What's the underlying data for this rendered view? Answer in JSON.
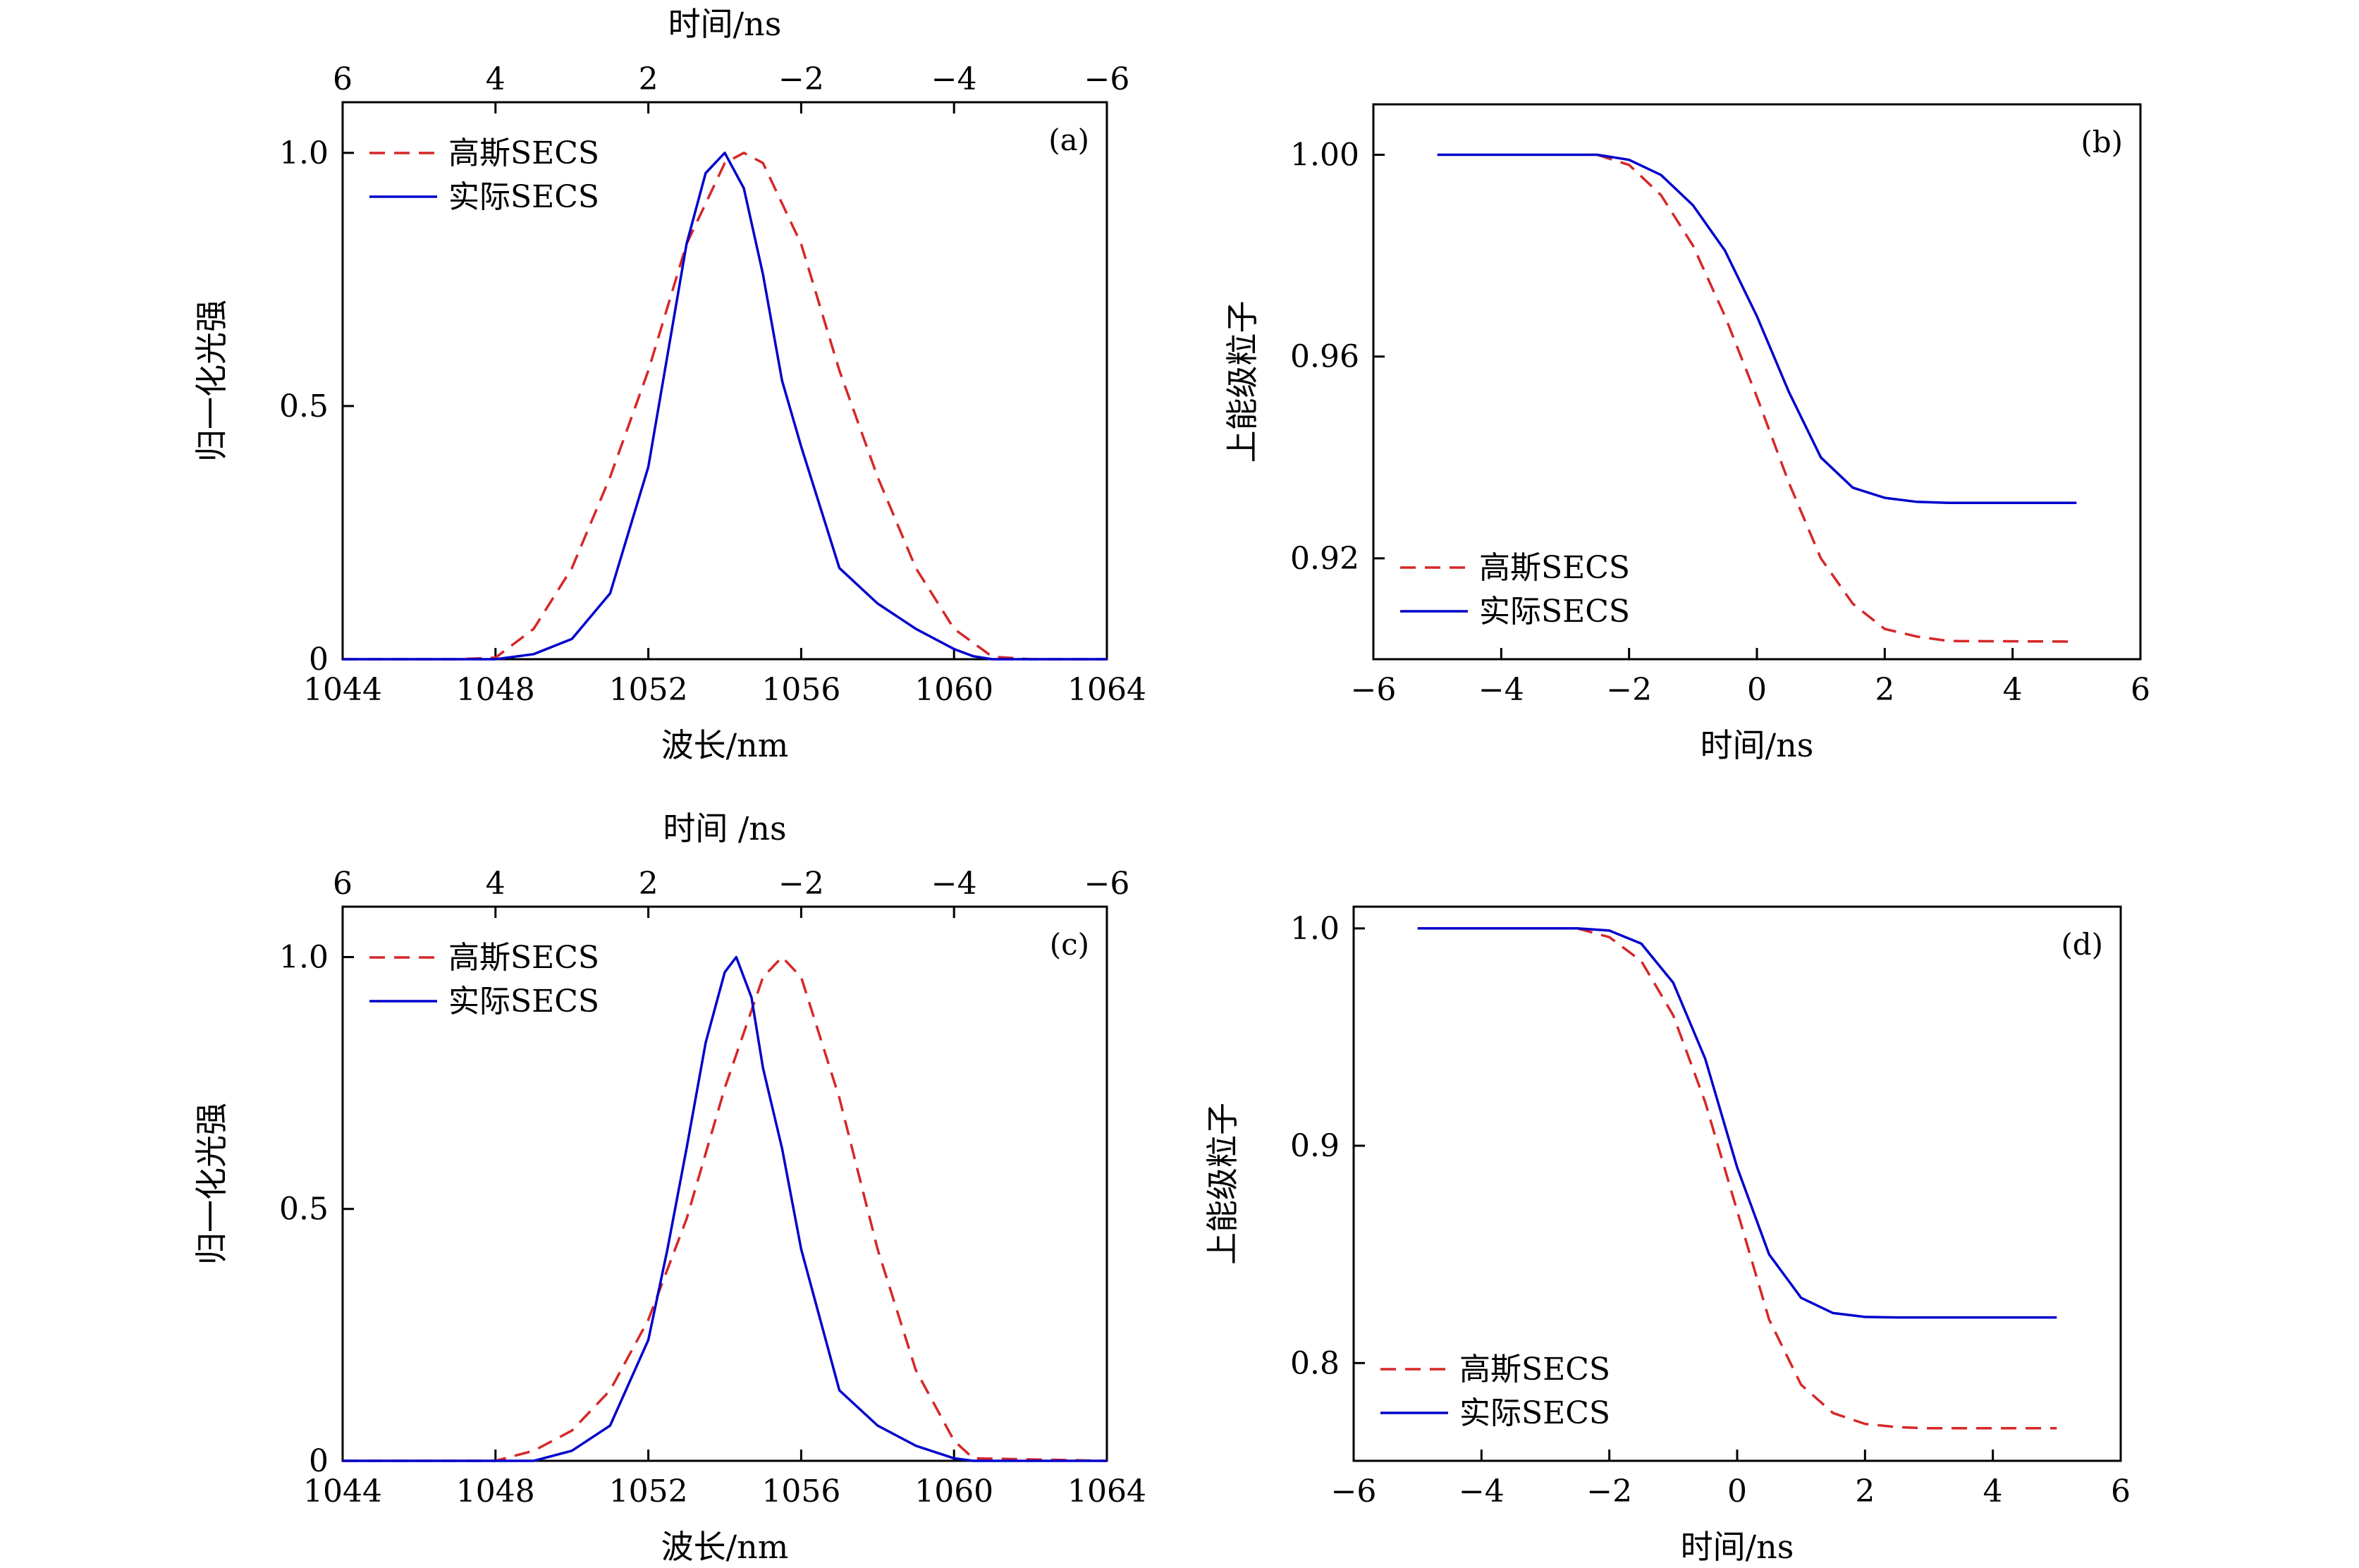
{
  "chart_data": [
    {
      "id": "a",
      "type": "line",
      "panel_tag": "(a)",
      "xlabel": "波长/nm",
      "ylabel": "归一化光强",
      "top_xlabel": "时间/ns",
      "xlim": [
        1044,
        1064
      ],
      "ylim": [
        0,
        1.1
      ],
      "xticks": [
        "1044",
        "1048",
        "1052",
        "1056",
        "1060",
        "1064"
      ],
      "xtick_values": [
        1044,
        1048,
        1052,
        1056,
        1060,
        1064
      ],
      "yticks": [
        "0",
        "0.5",
        "1.0"
      ],
      "ytick_values": [
        0,
        0.5,
        1.0
      ],
      "top_xticks": [
        "6",
        "4",
        "2",
        "−2",
        "−4",
        "−6"
      ],
      "top_xtick_values": [
        1044,
        1048,
        1052,
        1056,
        1060,
        1064
      ],
      "legend_position": "top-left",
      "series": [
        {
          "name": "高斯SECS",
          "color": "#d62728",
          "dash": "dashed",
          "x": [
            1044,
            1047,
            1048,
            1049,
            1050,
            1051,
            1052,
            1053,
            1054,
            1054.5,
            1055,
            1056,
            1057,
            1058,
            1059,
            1060,
            1061,
            1062,
            1064
          ],
          "y": [
            0,
            0,
            0.003,
            0.06,
            0.18,
            0.36,
            0.57,
            0.82,
            0.98,
            1.0,
            0.98,
            0.82,
            0.57,
            0.36,
            0.18,
            0.06,
            0.005,
            0,
            0
          ]
        },
        {
          "name": "实际SECS",
          "color": "#0000cc",
          "dash": "solid",
          "x": [
            1044,
            1048,
            1049,
            1050,
            1051,
            1052,
            1052.5,
            1053,
            1053.5,
            1054,
            1054.5,
            1055,
            1055.5,
            1056,
            1056.5,
            1057,
            1058,
            1059,
            1060,
            1060.5,
            1061,
            1064
          ],
          "y": [
            0,
            0,
            0.01,
            0.04,
            0.13,
            0.38,
            0.6,
            0.82,
            0.96,
            1.0,
            0.93,
            0.76,
            0.55,
            0.42,
            0.3,
            0.18,
            0.11,
            0.06,
            0.02,
            0.006,
            0,
            0
          ]
        }
      ]
    },
    {
      "id": "b",
      "type": "line",
      "panel_tag": "(b)",
      "xlabel": "时间/ns",
      "ylabel": "上能级粒子",
      "xlim": [
        -6,
        6
      ],
      "ylim": [
        0.9,
        1.01
      ],
      "xticks": [
        "−6",
        "−4",
        "−2",
        "0",
        "2",
        "4",
        "6"
      ],
      "xtick_values": [
        -6,
        -4,
        -2,
        0,
        2,
        4,
        6
      ],
      "yticks": [
        "0.92",
        "0.96",
        "1.00"
      ],
      "ytick_values": [
        0.92,
        0.96,
        1.0
      ],
      "legend_position": "bottom-left",
      "series": [
        {
          "name": "高斯SECS",
          "color": "#d62728",
          "dash": "dashed",
          "x": [
            -2.5,
            -2.0,
            -1.5,
            -1.0,
            -0.5,
            0.0,
            0.5,
            1.0,
            1.5,
            2.0,
            2.5,
            3.0,
            5.0
          ],
          "y": [
            1.0,
            0.998,
            0.992,
            0.982,
            0.968,
            0.952,
            0.935,
            0.92,
            0.911,
            0.906,
            0.9045,
            0.9036,
            0.9035
          ]
        },
        {
          "name": "实际SECS",
          "color": "#0000cc",
          "dash": "solid",
          "x": [
            -5.0,
            -2.5,
            -2.0,
            -1.5,
            -1.0,
            -0.5,
            0.0,
            0.5,
            1.0,
            1.5,
            2.0,
            2.5,
            3.0,
            5.0
          ],
          "y": [
            1.0,
            1.0,
            0.999,
            0.996,
            0.99,
            0.981,
            0.968,
            0.953,
            0.94,
            0.934,
            0.932,
            0.9312,
            0.931,
            0.931
          ]
        }
      ]
    },
    {
      "id": "c",
      "type": "line",
      "panel_tag": "(c)",
      "xlabel": "波长/nm",
      "ylabel": "归一化光强",
      "top_xlabel": "时间 /ns",
      "xlim": [
        1044,
        1064
      ],
      "ylim": [
        0,
        1.1
      ],
      "xticks": [
        "1044",
        "1048",
        "1052",
        "1056",
        "1060",
        "1064"
      ],
      "xtick_values": [
        1044,
        1048,
        1052,
        1056,
        1060,
        1064
      ],
      "yticks": [
        "0",
        "0.5",
        "1.0"
      ],
      "ytick_values": [
        0,
        0.5,
        1.0
      ],
      "top_xticks": [
        "6",
        "4",
        "2",
        "−2",
        "−4",
        "−6"
      ],
      "top_xtick_values": [
        1044,
        1048,
        1052,
        1056,
        1060,
        1064
      ],
      "legend_position": "top-left",
      "series": [
        {
          "name": "高斯SECS",
          "color": "#d62728",
          "dash": "dashed",
          "x": [
            1044,
            1048,
            1049,
            1050,
            1051,
            1052,
            1053,
            1054,
            1055,
            1055.5,
            1056,
            1057,
            1058,
            1059,
            1060,
            1060.5,
            1064
          ],
          "y": [
            0,
            0,
            0.02,
            0.06,
            0.14,
            0.28,
            0.48,
            0.74,
            0.96,
            1.0,
            0.96,
            0.72,
            0.42,
            0.18,
            0.04,
            0.005,
            0
          ]
        },
        {
          "name": "实际SECS",
          "color": "#0000cc",
          "dash": "solid",
          "x": [
            1044,
            1049,
            1050,
            1051,
            1052,
            1052.5,
            1053,
            1053.5,
            1054,
            1054.3,
            1054.7,
            1055,
            1055.5,
            1056,
            1057,
            1058,
            1059,
            1060,
            1060.5,
            1064
          ],
          "y": [
            0,
            0,
            0.02,
            0.07,
            0.24,
            0.42,
            0.62,
            0.83,
            0.97,
            1.0,
            0.92,
            0.78,
            0.62,
            0.42,
            0.14,
            0.07,
            0.03,
            0.005,
            0,
            0
          ]
        }
      ]
    },
    {
      "id": "d",
      "type": "line",
      "panel_tag": "(d)",
      "xlabel": "时间/ns",
      "ylabel": "上能级粒子",
      "xlim": [
        -6,
        6
      ],
      "ylim": [
        0.755,
        1.01
      ],
      "xticks": [
        "−6",
        "−4",
        "−2",
        "0",
        "2",
        "4",
        "6"
      ],
      "xtick_values": [
        -6,
        -4,
        -2,
        0,
        2,
        4,
        6
      ],
      "yticks": [
        "0.8",
        "0.9",
        "1.0"
      ],
      "ytick_values": [
        0.8,
        0.9,
        1.0
      ],
      "legend_position": "bottom-left",
      "series": [
        {
          "name": "高斯SECS",
          "color": "#d62728",
          "dash": "dashed",
          "x": [
            -2.5,
            -2.0,
            -1.5,
            -1.0,
            -0.5,
            0.0,
            0.5,
            1.0,
            1.5,
            2.0,
            2.5,
            3.0,
            5.0
          ],
          "y": [
            1.0,
            0.996,
            0.985,
            0.96,
            0.92,
            0.87,
            0.82,
            0.79,
            0.777,
            0.772,
            0.7705,
            0.77,
            0.77
          ]
        },
        {
          "name": "实际SECS",
          "color": "#0000cc",
          "dash": "solid",
          "x": [
            -5.0,
            -2.5,
            -2.0,
            -1.5,
            -1.0,
            -0.5,
            0.0,
            0.5,
            1.0,
            1.5,
            2.0,
            2.5,
            5.0
          ],
          "y": [
            1.0,
            1.0,
            0.999,
            0.993,
            0.975,
            0.94,
            0.89,
            0.85,
            0.83,
            0.823,
            0.8212,
            0.821,
            0.821
          ]
        }
      ]
    }
  ]
}
